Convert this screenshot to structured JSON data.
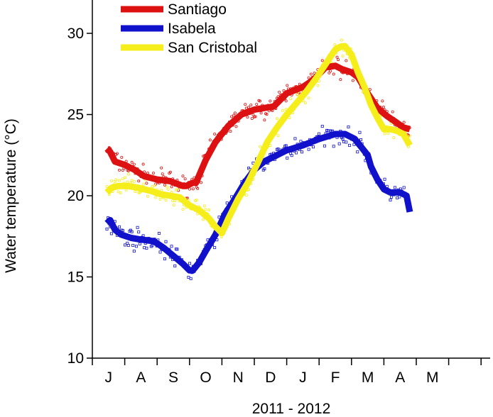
{
  "chart_data": {
    "type": "line",
    "xlabel": "2011 - 2012",
    "ylabel": "Water temperature (°C)",
    "ylim": [
      10,
      32.5
    ],
    "yticks": [
      10,
      15,
      20,
      25,
      30
    ],
    "xlim": [
      0,
      12
    ],
    "xtick_labels": [
      "J",
      "A",
      "S",
      "O",
      "N",
      "D",
      "J",
      "F",
      "M",
      "A",
      "M"
    ],
    "x_units": "month index (0 = start of July 2011)",
    "legend_position": "top-left",
    "grid": false,
    "series": [
      {
        "name": "Santiago",
        "color": "#dd1111",
        "x": [
          0.45,
          0.55,
          0.7,
          1.0,
          1.3,
          1.6,
          2.0,
          2.4,
          2.8,
          2.9,
          3.1,
          3.2,
          3.5,
          3.8,
          4.2,
          4.6,
          5.0,
          5.3,
          5.6,
          6.0,
          6.5,
          6.8,
          7.2,
          7.5,
          7.7,
          8.0,
          8.2,
          8.5,
          8.8,
          9.1,
          9.4,
          9.6,
          9.8
        ],
        "values": [
          22.9,
          22.7,
          22.1,
          21.9,
          21.6,
          21.2,
          21.0,
          20.9,
          20.6,
          20.6,
          20.8,
          20.8,
          22.2,
          23.3,
          24.3,
          25.0,
          25.3,
          25.4,
          25.5,
          26.3,
          26.7,
          27.1,
          27.9,
          28.0,
          27.8,
          27.6,
          27.3,
          26.3,
          25.4,
          24.9,
          24.5,
          24.2,
          24.1
        ]
      },
      {
        "name": "Isabela",
        "color": "#1111cc",
        "x": [
          0.45,
          0.55,
          0.7,
          0.9,
          1.2,
          1.5,
          1.9,
          2.2,
          2.5,
          2.8,
          3.0,
          3.1,
          3.3,
          3.5,
          3.8,
          4.1,
          4.4,
          4.7,
          5.0,
          5.3,
          5.6,
          6.0,
          6.5,
          7.0,
          7.5,
          7.8,
          8.1,
          8.3,
          8.5,
          8.6,
          8.8,
          9.0,
          9.2,
          9.5,
          9.7,
          9.8
        ],
        "values": [
          18.3,
          18.5,
          17.9,
          17.6,
          17.4,
          17.3,
          17.2,
          16.8,
          16.3,
          15.8,
          15.4,
          15.4,
          15.9,
          16.6,
          17.6,
          18.9,
          19.8,
          20.8,
          21.6,
          22.1,
          22.4,
          22.8,
          23.1,
          23.5,
          23.8,
          23.8,
          23.5,
          23.0,
          22.5,
          21.8,
          21.0,
          20.4,
          20.2,
          20.2,
          20.0,
          19.0
        ]
      },
      {
        "name": "San Cristobal",
        "color": "#f5ee1a",
        "x": [
          0.45,
          0.6,
          0.8,
          1.1,
          1.4,
          1.8,
          2.1,
          2.4,
          2.7,
          3.0,
          3.3,
          3.6,
          3.8,
          4.0,
          4.2,
          4.5,
          4.8,
          5.1,
          5.4,
          5.7,
          6.0,
          6.3,
          6.6,
          6.9,
          7.2,
          7.5,
          7.7,
          7.8,
          8.0,
          8.2,
          8.4,
          8.6,
          8.8,
          9.0,
          9.2,
          9.4,
          9.6,
          9.8
        ],
        "values": [
          20.2,
          20.5,
          20.6,
          20.6,
          20.5,
          20.3,
          20.1,
          20.0,
          19.9,
          19.4,
          19.1,
          18.6,
          18.1,
          17.7,
          18.6,
          19.8,
          20.8,
          22.0,
          23.3,
          24.2,
          25.0,
          25.7,
          26.4,
          27.2,
          28.1,
          29.0,
          29.2,
          29.2,
          28.7,
          27.6,
          26.7,
          25.6,
          24.8,
          24.1,
          24.1,
          24.0,
          23.8,
          23.1
        ]
      }
    ]
  }
}
